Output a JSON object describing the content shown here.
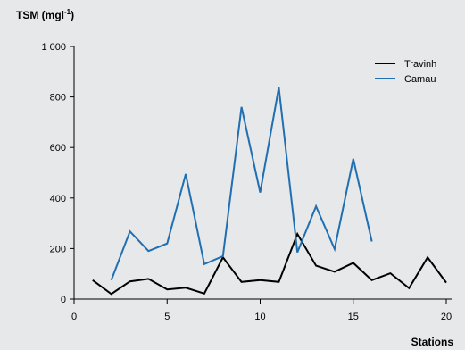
{
  "chart_data": {
    "type": "line",
    "ylabel": "TSM (mgl",
    "ylabel_sup": "-1",
    "ylabel_close": ")",
    "xlabel": "Stations",
    "xlim": [
      0,
      20
    ],
    "ylim": [
      0,
      1000
    ],
    "xticks": [
      0,
      5,
      10,
      15,
      20
    ],
    "yticks": [
      0,
      200,
      400,
      600,
      800,
      1000
    ],
    "ytick_labels": [
      "0",
      "200",
      "400",
      "600",
      "800",
      "1 000"
    ],
    "grid": false,
    "legend_position": "top-right",
    "series": [
      {
        "name": "Travinh",
        "color": "#000000",
        "x": [
          1,
          2,
          3,
          4,
          5,
          6,
          7,
          8,
          9,
          10,
          11,
          12,
          13,
          14,
          15,
          16,
          17,
          18,
          19,
          20
        ],
        "y": [
          75,
          20,
          70,
          80,
          38,
          45,
          22,
          165,
          68,
          75,
          68,
          258,
          132,
          108,
          143,
          75,
          102,
          43,
          165,
          65
        ]
      },
      {
        "name": "Camau",
        "color": "#1f6fb2",
        "x": [
          2,
          3,
          4,
          5,
          6,
          7,
          8,
          9,
          10,
          11,
          12,
          13,
          14,
          15,
          16
        ],
        "y": [
          75,
          268,
          190,
          220,
          495,
          138,
          170,
          760,
          422,
          838,
          185,
          367,
          198,
          555,
          228
        ]
      }
    ]
  }
}
